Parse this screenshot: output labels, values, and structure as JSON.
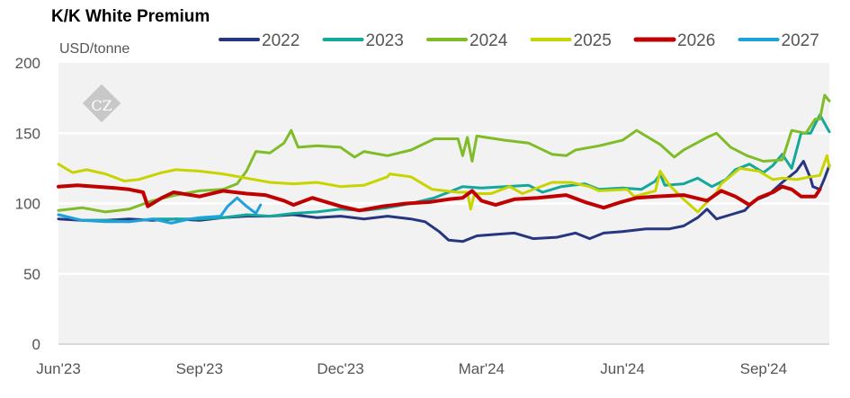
{
  "chart_data": {
    "type": "line",
    "title": "K/K White Premium",
    "ylabel": "USD/tonne",
    "xlabel": "",
    "ylim": [
      0,
      200
    ],
    "yticks": [
      0,
      50,
      100,
      150,
      200
    ],
    "x_unit": "months since Jun'23",
    "xlim": [
      0,
      16.4
    ],
    "xticks": [
      {
        "x": 0,
        "label": "Jun'23"
      },
      {
        "x": 3,
        "label": "Sep'23"
      },
      {
        "x": 6,
        "label": "Dec'23"
      },
      {
        "x": 9,
        "label": "Mar'24"
      },
      {
        "x": 12,
        "label": "Jun'24"
      },
      {
        "x": 15,
        "label": "Sep'24"
      }
    ],
    "grid": true,
    "legend_position": "top",
    "watermark": "CZ",
    "series": [
      {
        "name": "2022",
        "color": "#27367f",
        "points": [
          [
            0,
            89
          ],
          [
            0.5,
            88
          ],
          [
            1,
            88
          ],
          [
            1.5,
            89
          ],
          [
            2,
            88
          ],
          [
            2.5,
            89
          ],
          [
            3,
            88
          ],
          [
            3.5,
            90
          ],
          [
            4,
            91
          ],
          [
            4.5,
            91
          ],
          [
            5,
            92
          ],
          [
            5.5,
            90
          ],
          [
            6,
            91
          ],
          [
            6.5,
            89
          ],
          [
            7,
            91
          ],
          [
            7.5,
            89
          ],
          [
            7.8,
            87
          ],
          [
            8.1,
            80
          ],
          [
            8.3,
            74
          ],
          [
            8.6,
            73
          ],
          [
            8.9,
            77
          ],
          [
            9.3,
            78
          ],
          [
            9.7,
            79
          ],
          [
            10.1,
            75
          ],
          [
            10.6,
            76
          ],
          [
            11,
            79
          ],
          [
            11.3,
            75
          ],
          [
            11.6,
            79
          ],
          [
            12,
            80
          ],
          [
            12.5,
            82
          ],
          [
            13,
            82
          ],
          [
            13.3,
            84
          ],
          [
            13.6,
            90
          ],
          [
            13.8,
            96
          ],
          [
            14,
            89
          ],
          [
            14.3,
            92
          ],
          [
            14.6,
            95
          ],
          [
            14.8,
            102
          ],
          [
            15.1,
            106
          ],
          [
            15.4,
            115
          ],
          [
            15.7,
            123
          ],
          [
            15.85,
            130
          ],
          [
            16,
            118
          ],
          [
            16.05,
            112
          ],
          [
            16.2,
            110
          ],
          [
            16.3,
            118
          ],
          [
            16.4,
            127
          ]
        ]
      },
      {
        "name": "2023",
        "color": "#14a89c",
        "points": [
          [
            0,
            92
          ],
          [
            0.5,
            88
          ],
          [
            1,
            88
          ],
          [
            1.5,
            87
          ],
          [
            2,
            89
          ],
          [
            2.5,
            89
          ],
          [
            3,
            89
          ],
          [
            3.5,
            90
          ],
          [
            4,
            92
          ],
          [
            4.5,
            91
          ],
          [
            5,
            93
          ],
          [
            5.5,
            94
          ],
          [
            6,
            96
          ],
          [
            6.5,
            95
          ],
          [
            7,
            97
          ],
          [
            7.5,
            100
          ],
          [
            8,
            104
          ],
          [
            8.3,
            108
          ],
          [
            8.6,
            112
          ],
          [
            9,
            111
          ],
          [
            9.5,
            112
          ],
          [
            10,
            113
          ],
          [
            10.3,
            108
          ],
          [
            10.7,
            112
          ],
          [
            11.2,
            114
          ],
          [
            11.5,
            110
          ],
          [
            12,
            111
          ],
          [
            12.4,
            110
          ],
          [
            12.7,
            116
          ],
          [
            12.8,
            121
          ],
          [
            12.9,
            113
          ],
          [
            13.3,
            114
          ],
          [
            13.6,
            118
          ],
          [
            13.9,
            112
          ],
          [
            14.2,
            117
          ],
          [
            14.4,
            124
          ],
          [
            14.7,
            128
          ],
          [
            15,
            122
          ],
          [
            15.2,
            127
          ],
          [
            15.4,
            135
          ],
          [
            15.6,
            125
          ],
          [
            15.8,
            150
          ],
          [
            16,
            150
          ],
          [
            16.2,
            163
          ],
          [
            16.4,
            151
          ]
        ]
      },
      {
        "name": "2024",
        "color": "#7fbc28",
        "points": [
          [
            0,
            95
          ],
          [
            0.5,
            97
          ],
          [
            1,
            94
          ],
          [
            1.5,
            96
          ],
          [
            2,
            102
          ],
          [
            2.5,
            106
          ],
          [
            3,
            109
          ],
          [
            3.5,
            110
          ],
          [
            3.8,
            114
          ],
          [
            4,
            123
          ],
          [
            4.2,
            137
          ],
          [
            4.5,
            136
          ],
          [
            4.8,
            143
          ],
          [
            4.95,
            152
          ],
          [
            5.1,
            140
          ],
          [
            5.5,
            141
          ],
          [
            6,
            140
          ],
          [
            6.3,
            133
          ],
          [
            6.5,
            137
          ],
          [
            7,
            134
          ],
          [
            7.5,
            138
          ],
          [
            8,
            146
          ],
          [
            8.5,
            146
          ],
          [
            8.6,
            134
          ],
          [
            8.7,
            147
          ],
          [
            8.8,
            130
          ],
          [
            8.9,
            148
          ],
          [
            9.5,
            145
          ],
          [
            10,
            143
          ],
          [
            10.5,
            135
          ],
          [
            10.8,
            134
          ],
          [
            11,
            138
          ],
          [
            11.5,
            141
          ],
          [
            12,
            145
          ],
          [
            12.3,
            152
          ],
          [
            12.5,
            148
          ],
          [
            12.8,
            142
          ],
          [
            13.1,
            133
          ],
          [
            13.3,
            138
          ],
          [
            13.8,
            147
          ],
          [
            14,
            150
          ],
          [
            14.3,
            140
          ],
          [
            14.65,
            134
          ],
          [
            15,
            130
          ],
          [
            15.4,
            131
          ],
          [
            15.6,
            152
          ],
          [
            15.9,
            150
          ],
          [
            16.1,
            160
          ],
          [
            16.2,
            160
          ],
          [
            16.3,
            177
          ],
          [
            16.4,
            173
          ]
        ]
      },
      {
        "name": "2025",
        "color": "#c8d400",
        "points": [
          [
            0,
            128
          ],
          [
            0.3,
            122
          ],
          [
            0.6,
            124
          ],
          [
            1,
            121
          ],
          [
            1.4,
            116
          ],
          [
            1.7,
            117
          ],
          [
            2.2,
            122
          ],
          [
            2.5,
            124
          ],
          [
            3,
            123
          ],
          [
            3.5,
            121
          ],
          [
            4,
            118
          ],
          [
            4.5,
            115
          ],
          [
            5,
            114
          ],
          [
            5.5,
            115
          ],
          [
            6,
            112
          ],
          [
            6.5,
            113
          ],
          [
            7,
            119
          ],
          [
            7.05,
            121
          ],
          [
            7.5,
            119
          ],
          [
            7.95,
            110
          ],
          [
            8.5,
            108
          ],
          [
            8.7,
            108
          ],
          [
            8.77,
            96
          ],
          [
            8.85,
            107
          ],
          [
            9.2,
            107
          ],
          [
            9.6,
            112
          ],
          [
            9.87,
            107
          ],
          [
            10.5,
            115
          ],
          [
            10.9,
            115
          ],
          [
            11.3,
            112
          ],
          [
            11.5,
            109
          ],
          [
            12.1,
            110
          ],
          [
            12.25,
            105
          ],
          [
            12.7,
            109
          ],
          [
            12.8,
            123
          ],
          [
            13,
            113
          ],
          [
            13.3,
            103
          ],
          [
            13.6,
            94
          ],
          [
            14,
            108
          ],
          [
            14.1,
            114
          ],
          [
            14.5,
            125
          ],
          [
            14.9,
            123
          ],
          [
            15.2,
            117
          ],
          [
            15.4,
            118
          ],
          [
            15.7,
            117
          ],
          [
            16,
            119
          ],
          [
            16.2,
            120
          ],
          [
            16.35,
            134
          ],
          [
            16.4,
            126
          ]
        ]
      },
      {
        "name": "2026",
        "color": "#c00000",
        "points": [
          [
            0,
            112
          ],
          [
            0.4,
            113
          ],
          [
            0.8,
            112
          ],
          [
            1.2,
            111
          ],
          [
            1.5,
            110
          ],
          [
            1.8,
            108
          ],
          [
            1.9,
            98
          ],
          [
            2.2,
            104
          ],
          [
            2.45,
            108
          ],
          [
            3,
            105
          ],
          [
            3.5,
            109
          ],
          [
            4,
            107
          ],
          [
            4.4,
            106
          ],
          [
            4.8,
            102
          ],
          [
            5,
            99
          ],
          [
            5.4,
            104
          ],
          [
            5.7,
            101
          ],
          [
            6,
            98
          ],
          [
            6.4,
            95
          ],
          [
            6.9,
            98
          ],
          [
            7.4,
            100
          ],
          [
            7.9,
            101
          ],
          [
            8.3,
            103
          ],
          [
            8.6,
            104
          ],
          [
            8.8,
            109
          ],
          [
            9,
            102
          ],
          [
            9.3,
            99
          ],
          [
            9.7,
            103
          ],
          [
            10.2,
            104
          ],
          [
            10.8,
            106
          ],
          [
            11.2,
            101
          ],
          [
            11.6,
            97
          ],
          [
            11.97,
            101
          ],
          [
            12.3,
            104
          ],
          [
            12.7,
            105
          ],
          [
            13.3,
            106
          ],
          [
            13.8,
            102
          ],
          [
            14.1,
            109
          ],
          [
            14.4,
            105
          ],
          [
            14.7,
            99
          ],
          [
            14.9,
            104
          ],
          [
            15.2,
            108
          ],
          [
            15.4,
            112
          ],
          [
            15.6,
            110
          ],
          [
            15.8,
            105
          ],
          [
            16.1,
            105
          ],
          [
            16.2,
            110
          ]
        ]
      },
      {
        "name": "2027",
        "color": "#1ea1dc",
        "points": [
          [
            0,
            92
          ],
          [
            0.5,
            88
          ],
          [
            1,
            87
          ],
          [
            1.5,
            87
          ],
          [
            2,
            89
          ],
          [
            2.4,
            86
          ],
          [
            2.8,
            89
          ],
          [
            3,
            90
          ],
          [
            3.45,
            91
          ],
          [
            3.6,
            98
          ],
          [
            3.8,
            104
          ],
          [
            4,
            98
          ],
          [
            4.2,
            93
          ],
          [
            4.3,
            99
          ]
        ]
      }
    ]
  }
}
